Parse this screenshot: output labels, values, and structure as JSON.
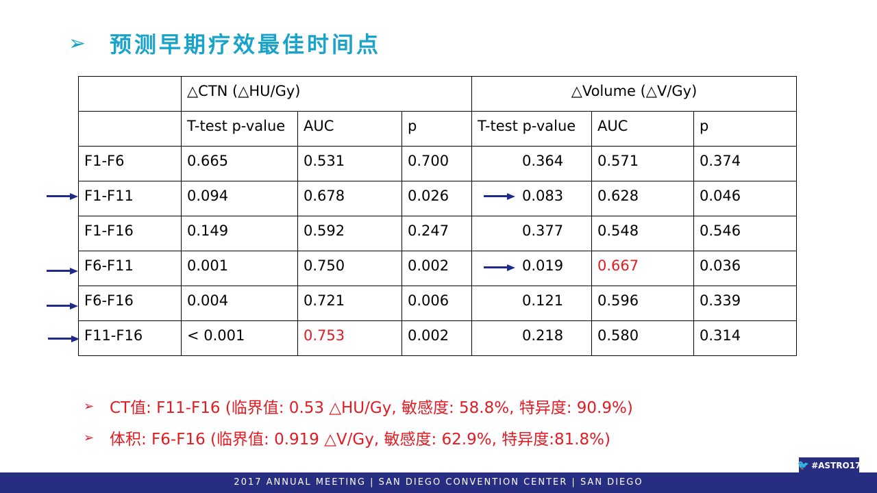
{
  "title": {
    "bullet": "➢",
    "text": "预测早期疗效最佳时间点"
  },
  "table": {
    "group_headers": {
      "ctn": "△CTN (△HU/Gy)",
      "volume": "△Volume (△V/Gy)"
    },
    "sub_headers": [
      "T-test p-value",
      "AUC",
      "p",
      "T-test p-value",
      "AUC",
      "p"
    ],
    "rows": [
      {
        "label": "F1-F6",
        "cells": [
          "0.665",
          "0.531",
          "0.700",
          "0.364",
          "0.571",
          "0.374"
        ]
      },
      {
        "label": "F1-F11",
        "cells": [
          "0.094",
          "0.678",
          "0.026",
          "0.083",
          "0.628",
          "0.046"
        ]
      },
      {
        "label": "F1-F16",
        "cells": [
          "0.149",
          "0.592",
          "0.247",
          "0.377",
          "0.548",
          "0.546"
        ]
      },
      {
        "label": "F6-F11",
        "cells": [
          "0.001",
          "0.750",
          "0.002",
          "0.019",
          "0.667",
          "0.036"
        ]
      },
      {
        "label": "F6-F16",
        "cells": [
          "0.004",
          "0.721",
          "0.006",
          "0.121",
          "0.596",
          "0.339"
        ]
      },
      {
        "label": "F11-F16",
        "cells": [
          "< 0.001",
          "0.753",
          "0.002",
          "0.218",
          "0.580",
          "0.314"
        ]
      }
    ]
  },
  "notes": [
    {
      "bullet": "➢",
      "text": "CT值: F11-F16 (临界值:  0.53 △HU/Gy, 敏感度: 58.8%, 特异度: 90.9%)"
    },
    {
      "bullet": "➢",
      "text": " 体积: F6-F16  (临界值: 0.919 △V/Gy, 敏感度: 62.9%, 特异度:81.8%)"
    }
  ],
  "footer": "2017 ANNUAL MEETING  |  SAN DIEGO CONVENTION CENTER  |  SAN DIEGO",
  "hashtag": "#ASTRO17",
  "colors": {
    "title": "#1aa3c9",
    "highlight": "#e31b23",
    "arrow": "#1f2a8c",
    "footer": "#272d80"
  }
}
